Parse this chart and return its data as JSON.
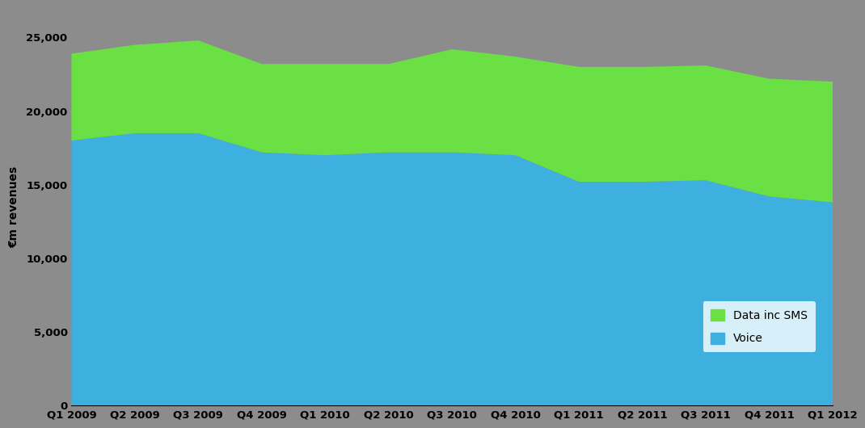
{
  "quarters": [
    "Q1 2009",
    "Q2 2009",
    "Q3 2009",
    "Q4 2009",
    "Q1 2010",
    "Q2 2010",
    "Q3 2010",
    "Q4 2010",
    "Q1 2011",
    "Q2 2011",
    "Q3 2011",
    "Q4 2011",
    "Q1 2012"
  ],
  "voice": [
    18000,
    18500,
    18500,
    17200,
    17000,
    17200,
    17200,
    17000,
    15200,
    15200,
    15300,
    14200,
    13800
  ],
  "data_inc_sms": [
    5900,
    6000,
    6300,
    6000,
    6200,
    6000,
    7000,
    6700,
    7800,
    7800,
    7800,
    8000,
    8200
  ],
  "voice_color": "#3DB0E0",
  "data_color": "#6BE044",
  "ylabel": "€m revenues",
  "ylim": [
    0,
    27000
  ],
  "yticks": [
    0,
    5000,
    10000,
    15000,
    20000,
    25000
  ],
  "background_color": "#8C8C8C",
  "legend_labels": [
    "Data inc SMS",
    "Voice"
  ],
  "legend_colors": [
    "#6BE044",
    "#3DB0E0"
  ],
  "tick_fontsize": 9.5,
  "ylabel_fontsize": 10
}
